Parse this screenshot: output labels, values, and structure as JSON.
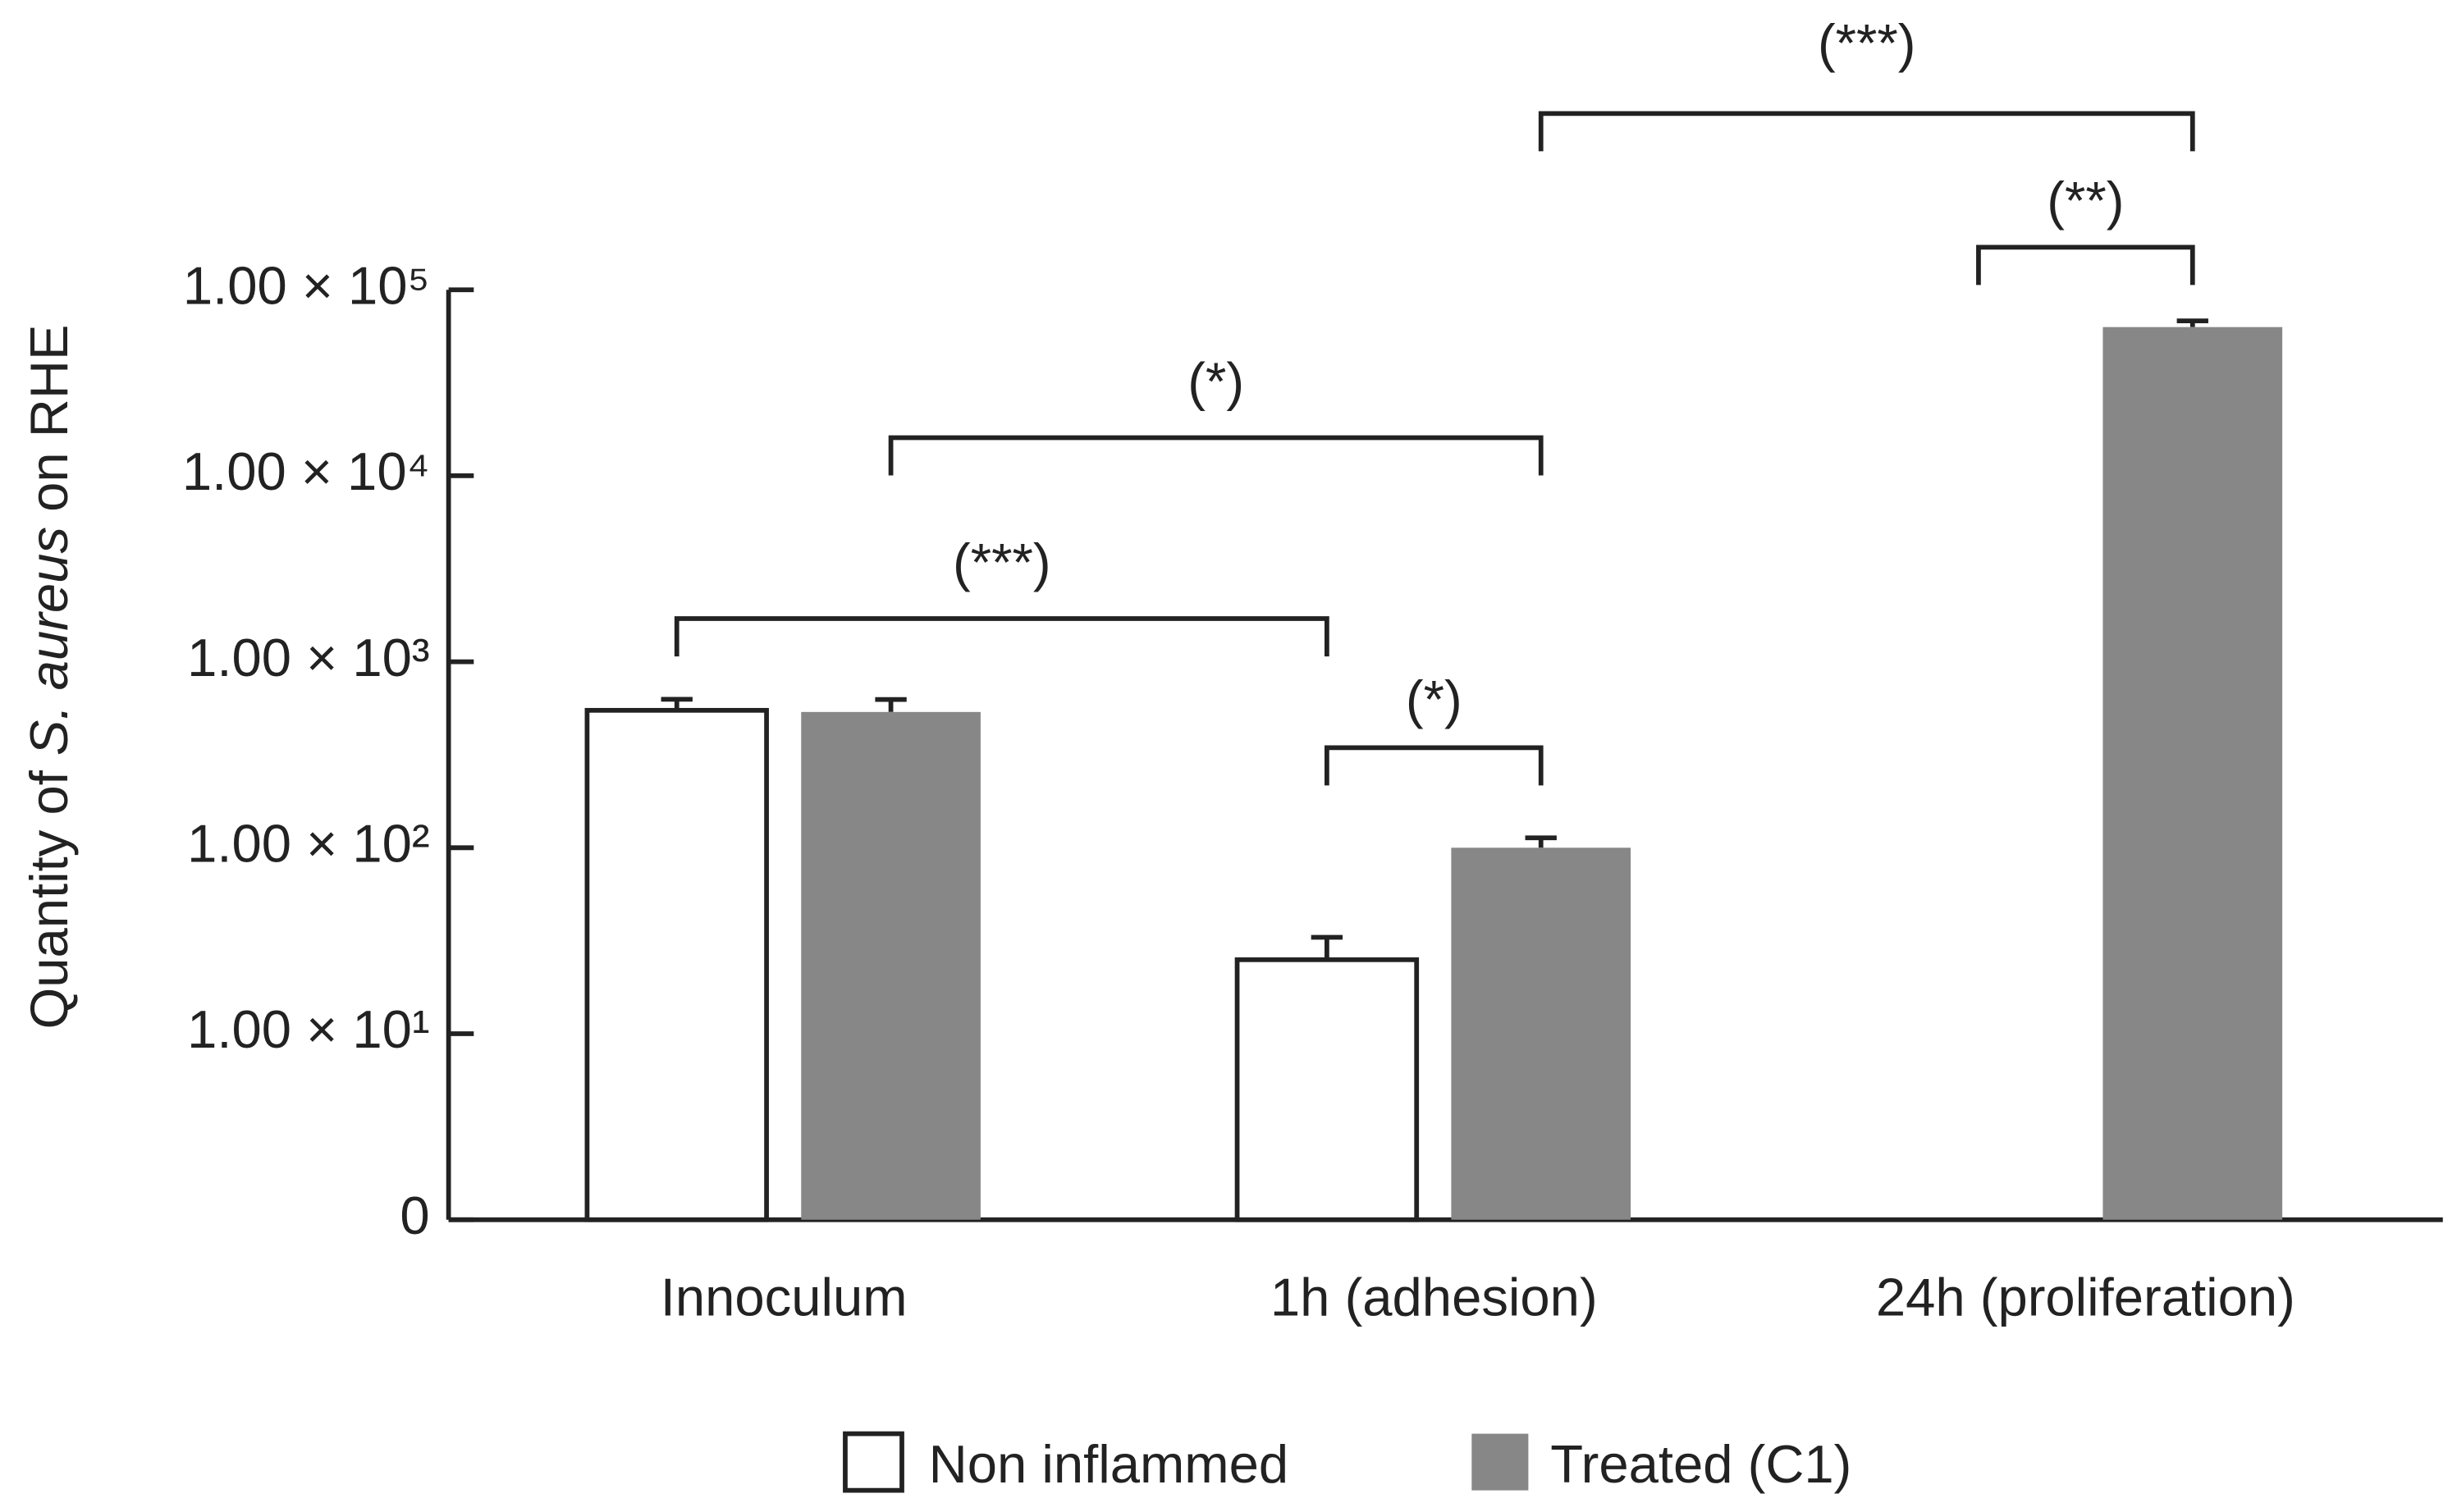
{
  "chart_data": {
    "type": "bar",
    "ylabel": [
      "Quantity of ",
      "S. aureus",
      " on RHE"
    ],
    "categories": [
      "Innoculum",
      "1h (adhesion)",
      "24h (proliferation)"
    ],
    "series": [
      {
        "name": "Non inflammed",
        "color": "#ffffff",
        "values": [
          548,
          25,
          null
        ],
        "errors": [
          80,
          8,
          null
        ]
      },
      {
        "name": "Treated (C1)",
        "color": "#878787",
        "values": [
          537,
          100,
          63000
        ],
        "errors": [
          90,
          13,
          5000
        ]
      }
    ],
    "ylim": [
      1,
      100000
    ],
    "log_y": true,
    "yticks": [
      {
        "value": 1,
        "label": "0"
      },
      {
        "value": 10,
        "label": "1.00 × 10¹"
      },
      {
        "value": 100,
        "label": "1.00 × 10²"
      },
      {
        "value": 1000,
        "label": "1.00 × 10³"
      },
      {
        "value": 10000,
        "label": "1.00 × 10⁴"
      },
      {
        "value": 100000,
        "label": "1.00 × 10⁵"
      }
    ],
    "annotations": [
      "(***)",
      "(*)",
      "(*)",
      "(**)",
      "(***)"
    ],
    "legend": "bottom"
  }
}
